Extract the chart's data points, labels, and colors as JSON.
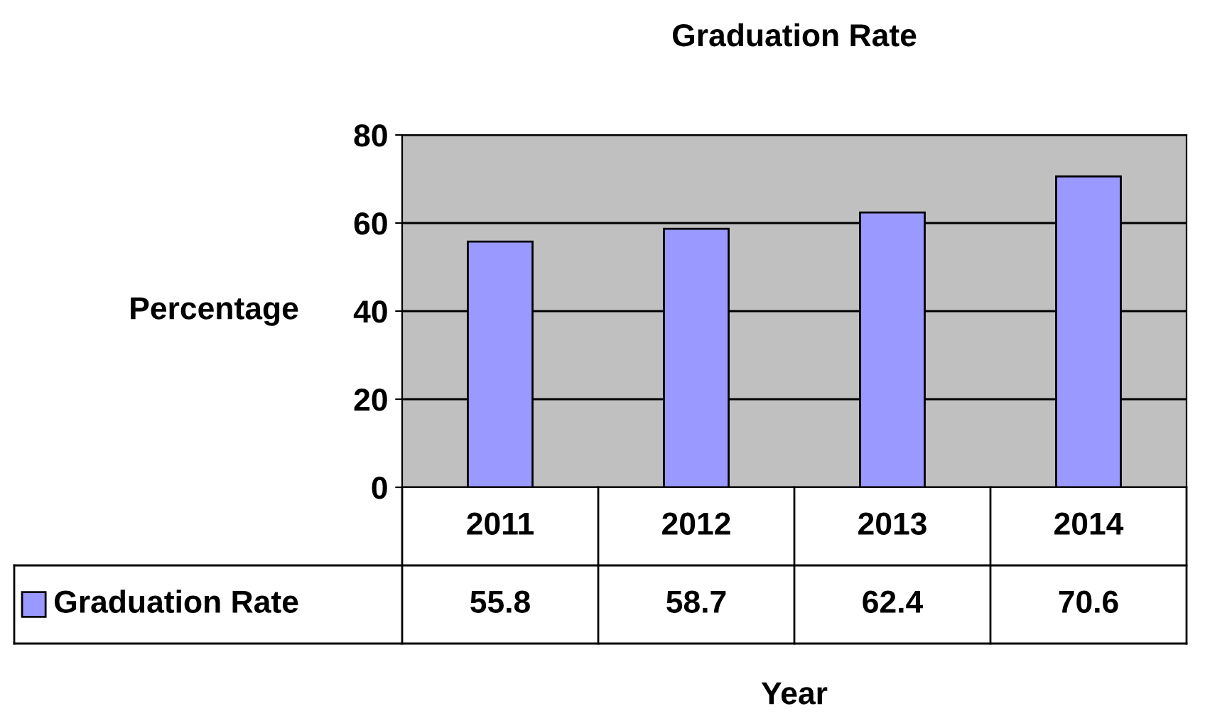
{
  "chart_data": {
    "type": "bar",
    "title": "Graduation Rate",
    "xlabel": "Year",
    "ylabel": "Percentage",
    "categories": [
      "2011",
      "2012",
      "2013",
      "2014"
    ],
    "series": [
      {
        "name": "Graduation Rate",
        "color": "#9999ff",
        "values": [
          55.8,
          58.7,
          62.4,
          70.6
        ]
      }
    ],
    "ylim": [
      0,
      80
    ],
    "yticks": [
      0,
      20,
      40,
      60,
      80
    ],
    "grid": "y",
    "legend": "bottom left",
    "data_labels": true
  }
}
